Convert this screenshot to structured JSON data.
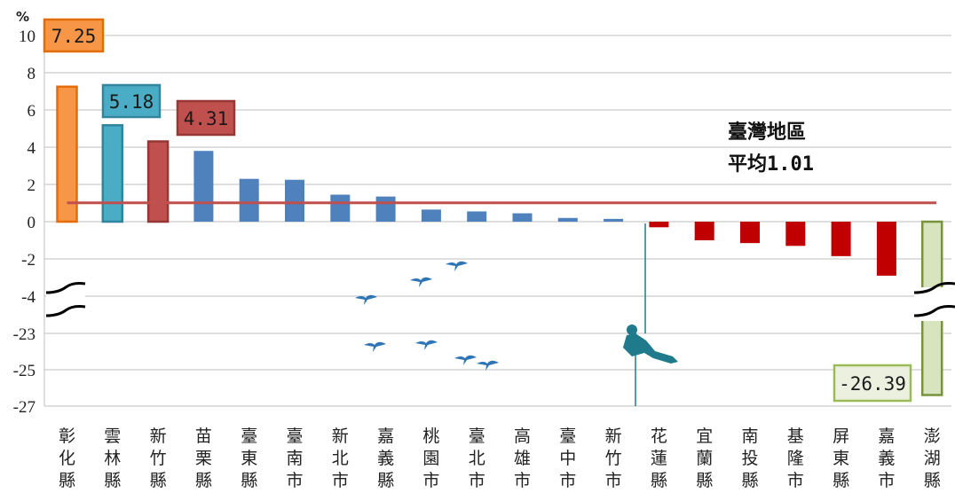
{
  "chart_data": {
    "type": "bar",
    "ylabel": "%",
    "y_ticks": [
      "10",
      "8",
      "6",
      "4",
      "2",
      "0",
      "-2",
      "-4",
      "-23",
      "-25",
      "-27"
    ],
    "y_axis_break": {
      "from": -4,
      "to": -23
    },
    "categories": [
      "彰化縣",
      "雲林縣",
      "新竹縣",
      "苗栗縣",
      "臺東縣",
      "臺南市",
      "新北市",
      "嘉義縣",
      "桃園市",
      "臺北市",
      "高雄市",
      "臺中市",
      "新竹市",
      "花蓮縣",
      "宜蘭縣",
      "南投縣",
      "基隆市",
      "屏東縣",
      "嘉義市",
      "澎湖縣"
    ],
    "values": [
      7.25,
      5.18,
      4.31,
      3.8,
      2.3,
      2.25,
      1.45,
      1.35,
      0.65,
      0.55,
      0.45,
      0.2,
      0.15,
      -0.3,
      -1.0,
      -1.15,
      -1.3,
      -1.85,
      -2.9,
      -26.39
    ],
    "bar_colors": [
      "#F79646",
      "#4BACC6",
      "#C0504D",
      "#4F81BD",
      "#4F81BD",
      "#4F81BD",
      "#4F81BD",
      "#4F81BD",
      "#4F81BD",
      "#4F81BD",
      "#4F81BD",
      "#4F81BD",
      "#4F81BD",
      "#C00000",
      "#C00000",
      "#C00000",
      "#C00000",
      "#C00000",
      "#C00000",
      "#D7E4BD"
    ],
    "bar_outlines": {
      "0": "#E46C0A",
      "1": "#31859C",
      "2": "#953735",
      "19": "#77933C"
    },
    "highlight_labels": [
      {
        "category_index": 0,
        "text": "7.25",
        "bg": "#F79646",
        "border": "#E46C0A",
        "color": "#1a1a1a"
      },
      {
        "category_index": 1,
        "text": "5.18",
        "bg": "#4BACC6",
        "border": "#31859C",
        "color": "#1a1a1a"
      },
      {
        "category_index": 2,
        "text": "4.31",
        "bg": "#C0504D",
        "border": "#953735",
        "color": "#1a1a1a"
      },
      {
        "category_index": 19,
        "text": "-26.39",
        "bg": "#EBF1DE",
        "border": "#9BBB59",
        "color": "#1a1a1a"
      }
    ],
    "average": {
      "value": 1.01,
      "line1": "臺灣地區",
      "line2": "平均1.01",
      "color": "#C0504D"
    },
    "grid": true,
    "decor_color": "#2E75B6",
    "climber_color": "#1F7A8C"
  }
}
